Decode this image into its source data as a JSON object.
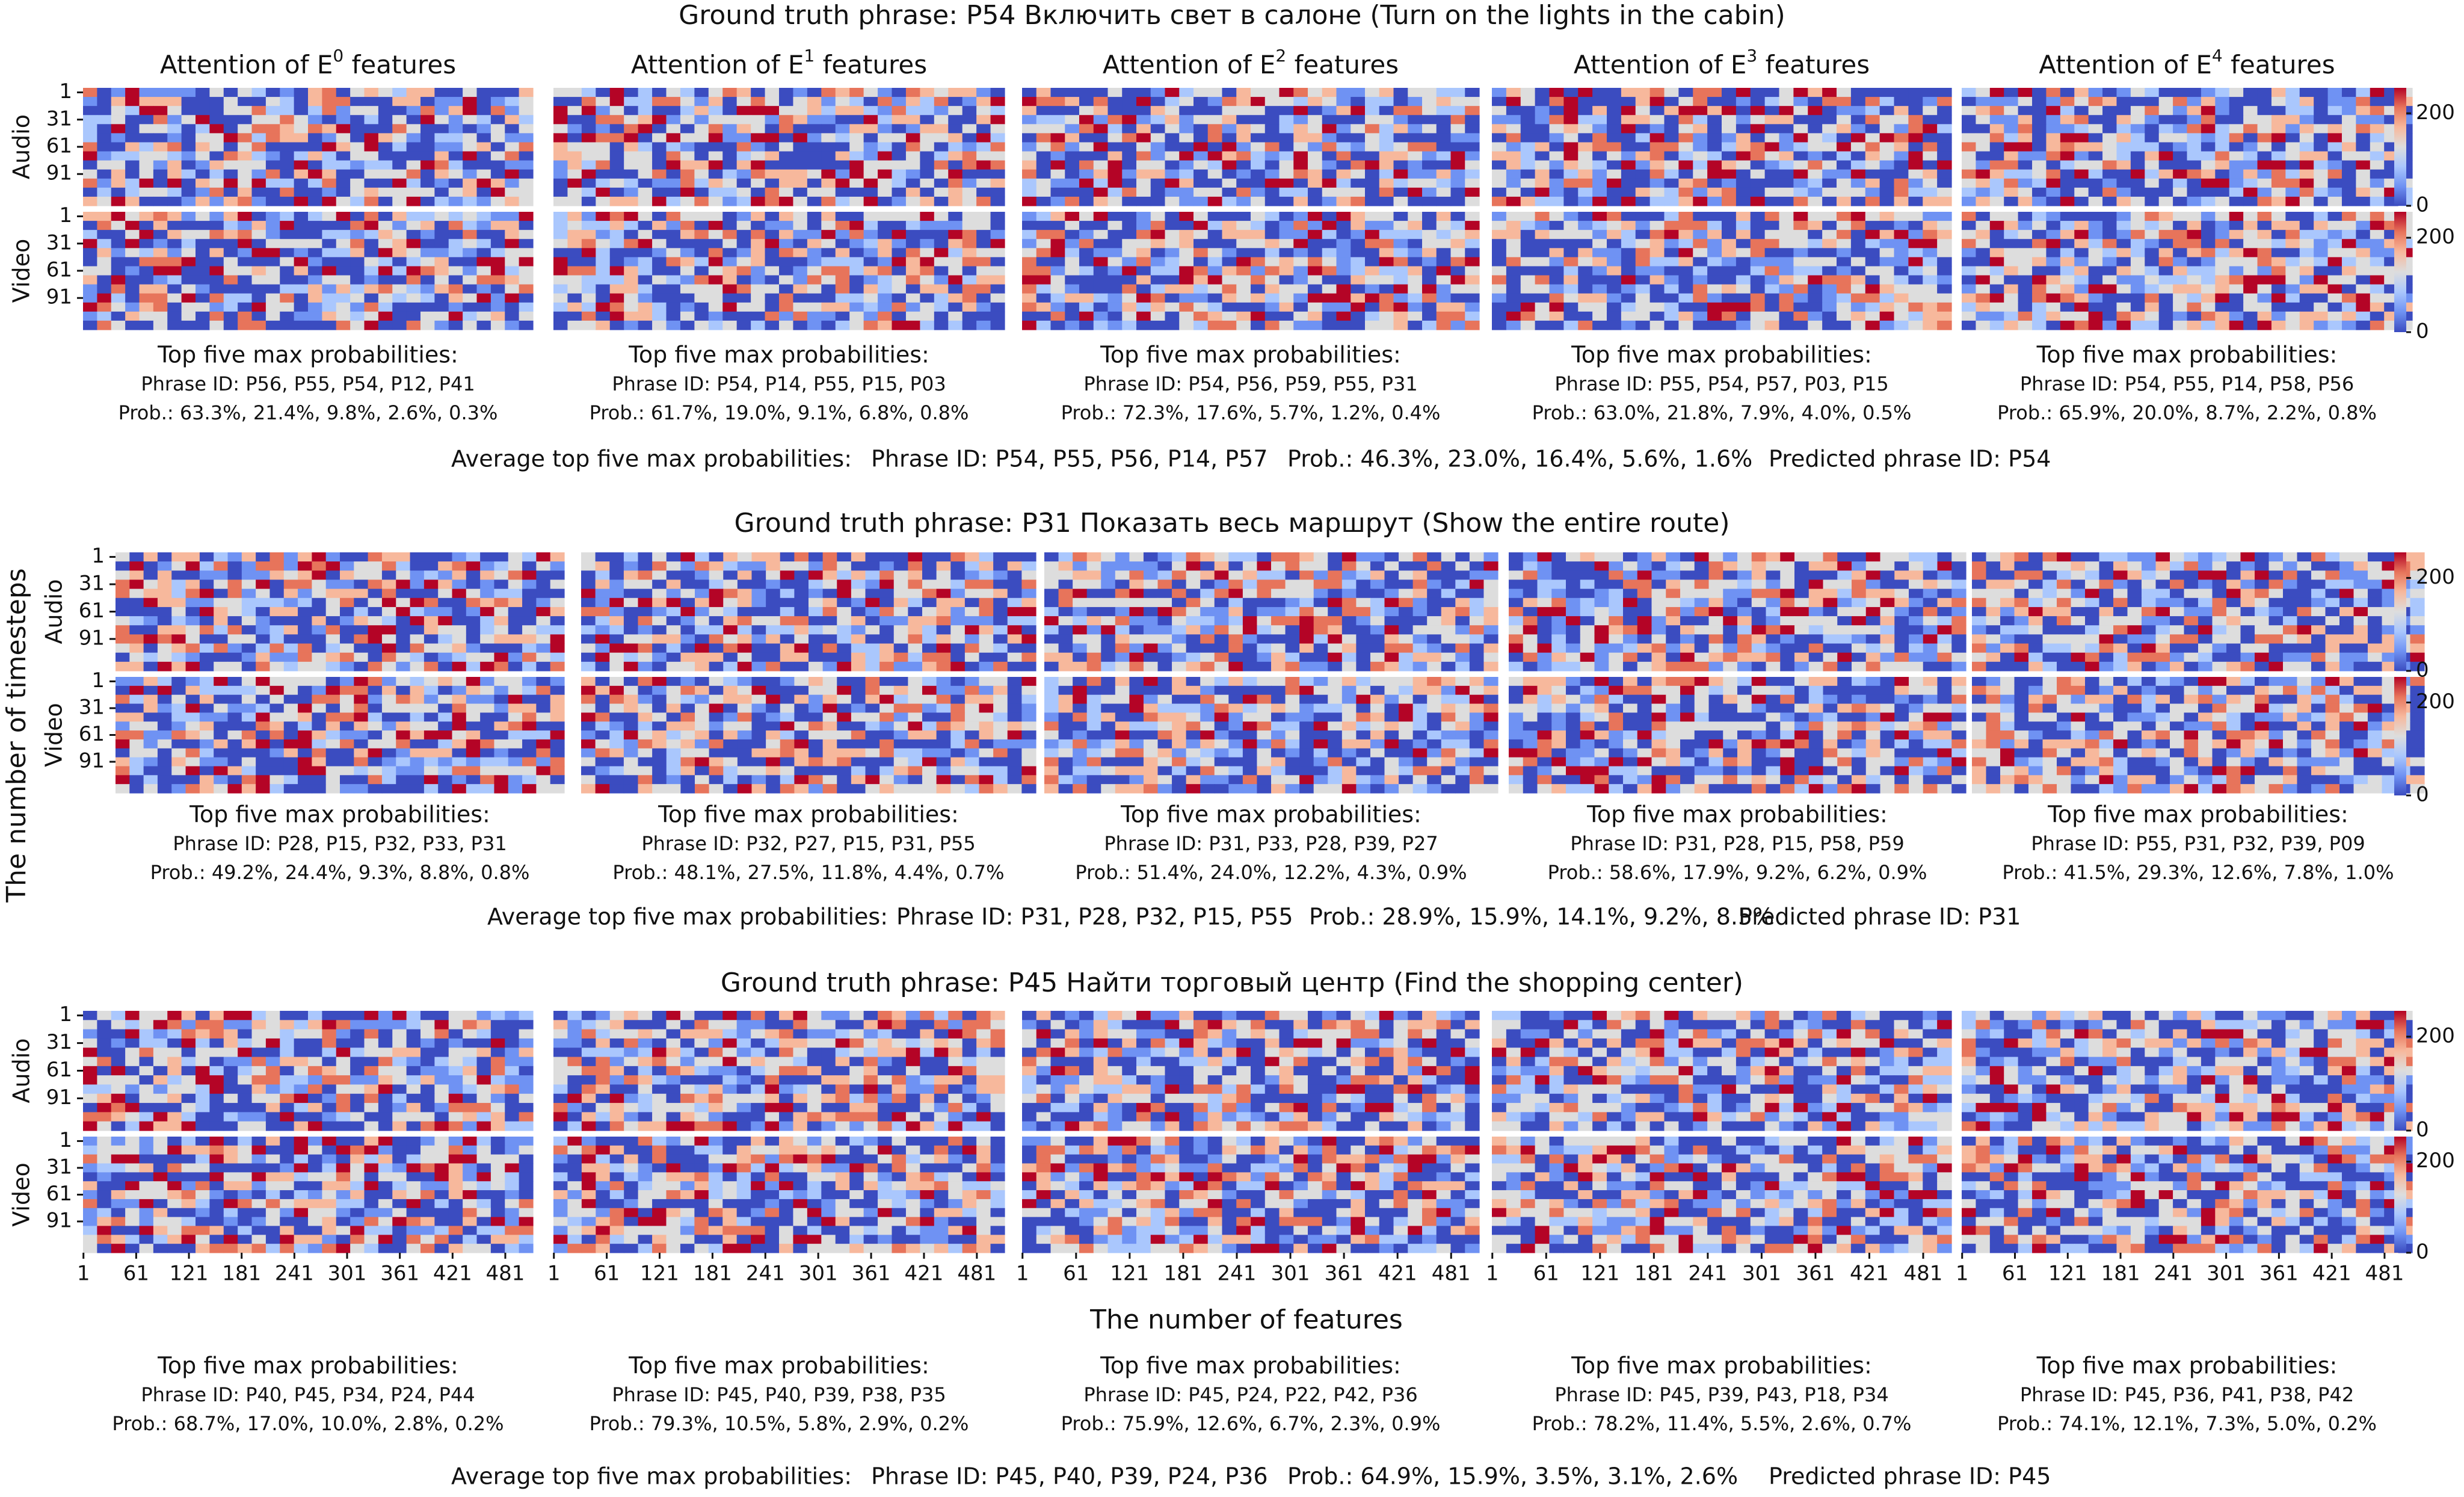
{
  "figure": {
    "y_axis_label": "The number of timesteps",
    "x_axis_label": "The number of features"
  },
  "colors": {
    "cmap": [
      "#3b4cc0",
      "#6f92f3",
      "#aac7fd",
      "#dddddd",
      "#f7b89c",
      "#e7745b",
      "#b40426"
    ],
    "grid_gap": "#ffffff"
  },
  "chart_data": {
    "type": "heatmap",
    "colormap": "coolwarm",
    "colorbar": {
      "ticks": [
        0,
        200
      ],
      "range": [
        0,
        255
      ]
    },
    "column_titles": [
      "Attention of E",
      "Attention of E",
      "Attention of E",
      "Attention of E",
      "Attention of E"
    ],
    "column_superscripts": [
      "0",
      "1",
      "2",
      "3",
      "4"
    ],
    "column_title_suffix": " features",
    "modality_labels": [
      "Audio",
      "Video"
    ],
    "row_ticks": [
      "1",
      "31",
      "61",
      "91"
    ],
    "feature_ticks": [
      "1",
      "61",
      "121",
      "181",
      "241",
      "301",
      "361",
      "421",
      "481"
    ],
    "grid": {
      "rows_per_modality": 13,
      "feature_columns": 32
    },
    "rows": [
      {
        "title": "Ground truth phrase: P54 Включить свет в салоне (Turn on the lights in the cabin)",
        "panels": [
          {
            "header": "Top five max probabilities:",
            "phrase_ids": "Phrase ID: P56, P55, P54, P12, P41",
            "probs": "Prob.: 63.3%, 21.4%, 9.8%, 2.6%, 0.3%"
          },
          {
            "header": "Top five max probabilities:",
            "phrase_ids": "Phrase ID: P54, P14, P55, P15, P03",
            "probs": "Prob.: 61.7%, 19.0%, 9.1%, 6.8%, 0.8%"
          },
          {
            "header": "Top five max probabilities:",
            "phrase_ids": "Phrase ID: P54, P56, P59, P55, P31",
            "probs": "Prob.: 72.3%, 17.6%, 5.7%, 1.2%, 0.4%"
          },
          {
            "header": "Top five max probabilities:",
            "phrase_ids": "Phrase ID: P55, P54, P57, P03, P15",
            "probs": "Prob.: 63.0%, 21.8%, 7.9%, 4.0%, 0.5%"
          },
          {
            "header": "Top five max probabilities:",
            "phrase_ids": "Phrase ID: P54, P55, P14, P58, P56",
            "probs": "Prob.: 65.9%, 20.0%, 8.7%, 2.2%, 0.8%"
          }
        ],
        "average": {
          "label": "Average top five max probabilities:",
          "phrase_ids": "Phrase ID: P54, P55, P56, P14, P57",
          "probs": "Prob.: 46.3%, 23.0%, 16.4%, 5.6%, 1.6%",
          "predicted": "Predicted phrase ID: P54"
        }
      },
      {
        "title": "Ground truth phrase: P31 Показать весь маршрут (Show the entire route)",
        "panels": [
          {
            "header": "Top five max probabilities:",
            "phrase_ids": "Phrase ID: P28, P15, P32, P33, P31",
            "probs": "Prob.: 49.2%, 24.4%, 9.3%, 8.8%, 0.8%"
          },
          {
            "header": "Top five max probabilities:",
            "phrase_ids": "Phrase ID: P32, P27, P15, P31, P55",
            "probs": "Prob.: 48.1%, 27.5%, 11.8%, 4.4%, 0.7%"
          },
          {
            "header": "Top five max probabilities:",
            "phrase_ids": "Phrase ID: P31, P33, P28, P39, P27",
            "probs": "Prob.: 51.4%, 24.0%, 12.2%, 4.3%, 0.9%"
          },
          {
            "header": "Top five max probabilities:",
            "phrase_ids": "Phrase ID: P31, P28, P15, P58, P59",
            "probs": "Prob.: 58.6%, 17.9%, 9.2%, 6.2%, 0.9%"
          },
          {
            "header": "Top five max probabilities:",
            "phrase_ids": "Phrase ID: P55, P31, P32, P39, P09",
            "probs": "Prob.: 41.5%, 29.3%, 12.6%, 7.8%, 1.0%"
          }
        ],
        "average": {
          "label": "Average top five max probabilities:",
          "phrase_ids": "Phrase ID: P31, P28, P32, P15, P55",
          "probs": "Prob.: 28.9%, 15.9%, 14.1%, 9.2%, 8.5%",
          "predicted": "Predicted phrase ID: P31"
        }
      },
      {
        "title": "Ground truth phrase: P45 Найти торговый центр (Find the shopping center)",
        "panels": [
          {
            "header": "Top five max probabilities:",
            "phrase_ids": "Phrase ID: P40, P45, P34, P24, P44",
            "probs": "Prob.: 68.7%, 17.0%, 10.0%, 2.8%, 0.2%"
          },
          {
            "header": "Top five max probabilities:",
            "phrase_ids": "Phrase ID: P45, P40, P39, P38, P35",
            "probs": "Prob.: 79.3%, 10.5%, 5.8%, 2.9%, 0.2%"
          },
          {
            "header": "Top five max probabilities:",
            "phrase_ids": "Phrase ID: P45, P24, P22, P42, P36",
            "probs": "Prob.: 75.9%, 12.6%, 6.7%, 2.3%, 0.9%"
          },
          {
            "header": "Top five max probabilities:",
            "phrase_ids": "Phrase ID: P45, P39, P43, P18, P34",
            "probs": "Prob.: 78.2%, 11.4%, 5.5%, 2.6%, 0.7%"
          },
          {
            "header": "Top five max probabilities:",
            "phrase_ids": "Phrase ID: P45, P36, P41, P38, P42",
            "probs": "Prob.: 74.1%, 12.1%, 7.3%, 5.0%, 0.2%"
          }
        ],
        "average": {
          "label": "Average top five max probabilities:",
          "phrase_ids": "Phrase ID: P45, P40, P39, P24, P36",
          "probs": "Prob.: 64.9%, 15.9%, 3.5%, 3.1%, 2.6%",
          "predicted": "Predicted phrase ID: P45"
        }
      }
    ]
  }
}
